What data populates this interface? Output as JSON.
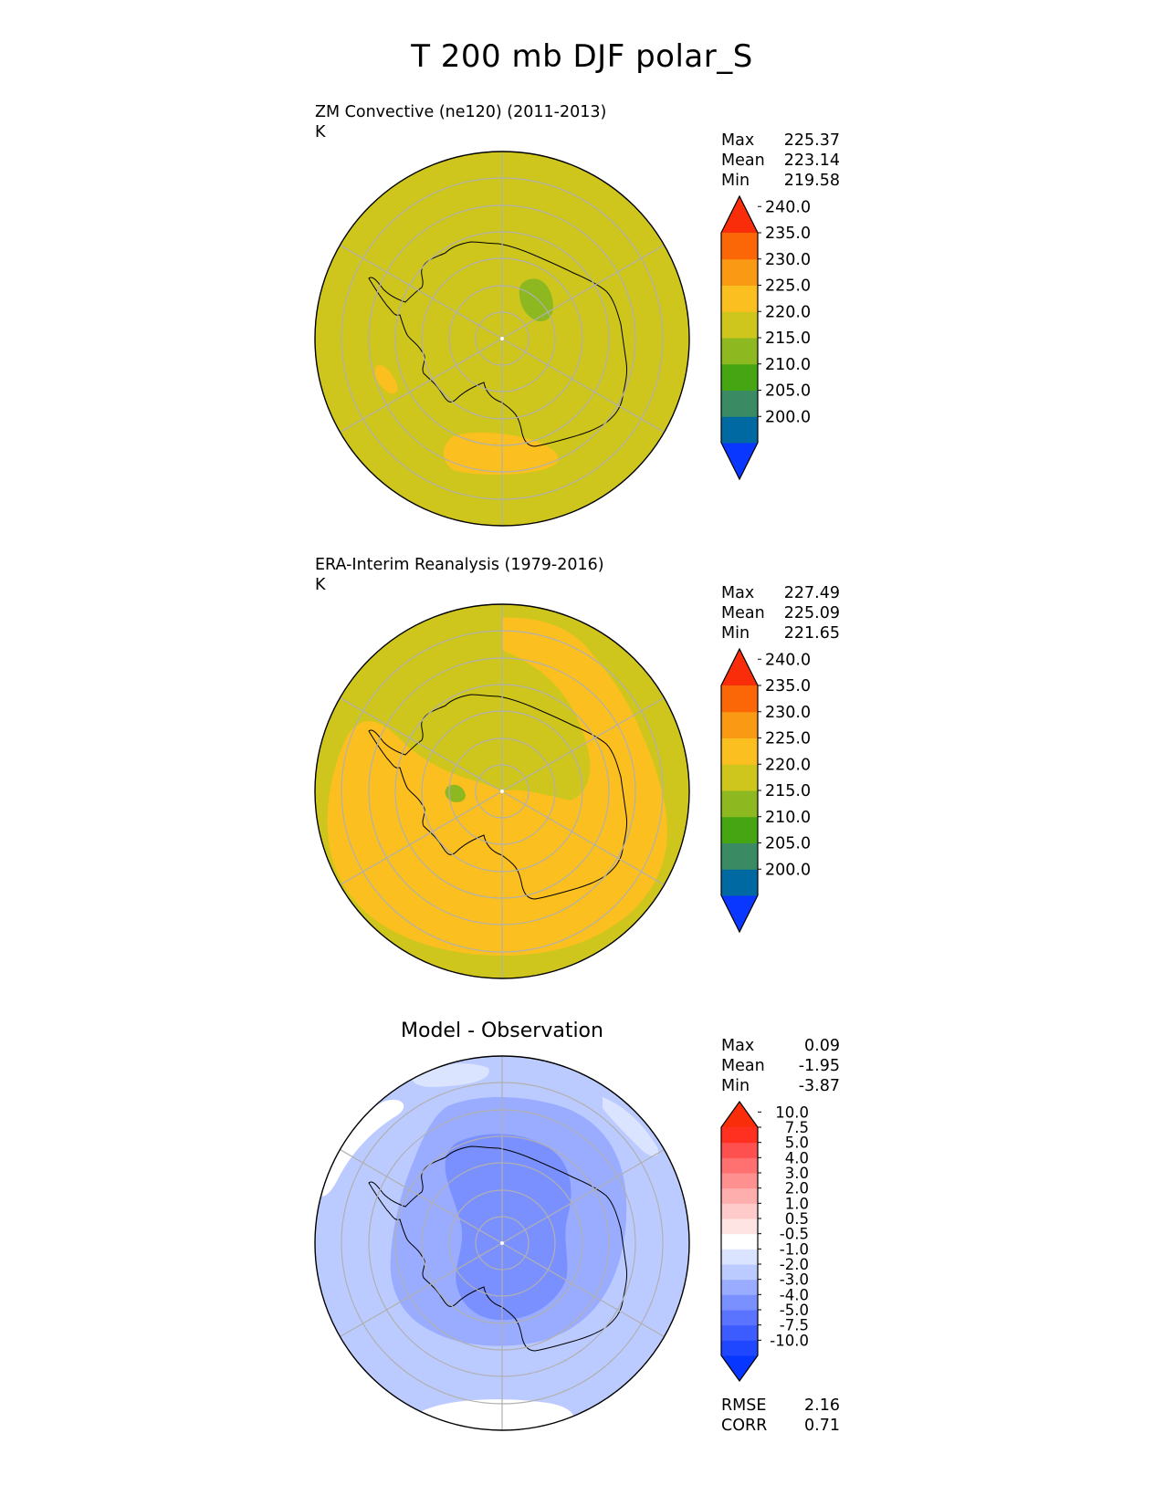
{
  "title": "T 200 mb DJF polar_S",
  "panels": [
    {
      "title": "ZM Convective (ne120) (2011-2013)",
      "units": "K",
      "stats": [
        {
          "label": "Max",
          "value": "225.37"
        },
        {
          "label": "Mean",
          "value": "223.14"
        },
        {
          "label": "Min",
          "value": "219.58"
        }
      ]
    },
    {
      "title": "ERA-Interim Reanalysis (1979-2016)",
      "units": "K",
      "stats": [
        {
          "label": "Max",
          "value": "227.49"
        },
        {
          "label": "Mean",
          "value": "225.09"
        },
        {
          "label": "Min",
          "value": "221.65"
        }
      ]
    },
    {
      "title": "Model - Observation",
      "stats": [
        {
          "label": "Max",
          "value": "0.09"
        },
        {
          "label": "Mean",
          "value": "-1.95"
        },
        {
          "label": "Min",
          "value": "-3.87"
        }
      ],
      "metrics": [
        {
          "label": "RMSE",
          "value": "2.16"
        },
        {
          "label": "CORR",
          "value": "0.71"
        }
      ]
    }
  ],
  "chart_data": [
    {
      "type": "heatmap",
      "projection": "south-polar-stereographic",
      "title": "ZM Convective (ne120) (2011-2013)",
      "units": "K",
      "colorbar": {
        "levels": [
          "200.0",
          "205.0",
          "210.0",
          "215.0",
          "220.0",
          "225.0",
          "230.0",
          "235.0",
          "240.0"
        ],
        "colors": [
          "#0a37ff",
          "#0069a1",
          "#3a8a64",
          "#46a513",
          "#8db81f",
          "#cfc61d",
          "#fbbf1f",
          "#fa9a14",
          "#fb6707",
          "#fa2d0a"
        ],
        "extend": "both"
      },
      "regions": [
        {
          "range": "220.0-225.0",
          "color": "#cfc61d",
          "extent": "background"
        },
        {
          "range": "215.0-220.0",
          "color": "#8db81f",
          "extent": "small patch east of pole"
        },
        {
          "range": "225.0-230.0",
          "color": "#fbbf1f",
          "extent": "patches off the coast"
        }
      ]
    },
    {
      "type": "heatmap",
      "projection": "south-polar-stereographic",
      "title": "ERA-Interim Reanalysis (1979-2016)",
      "units": "K",
      "colorbar": {
        "levels": [
          "200.0",
          "205.0",
          "210.0",
          "215.0",
          "220.0",
          "225.0",
          "230.0",
          "235.0",
          "240.0"
        ],
        "colors": [
          "#0a37ff",
          "#0069a1",
          "#3a8a64",
          "#46a513",
          "#8db81f",
          "#cfc61d",
          "#fbbf1f",
          "#fa9a14",
          "#fb6707",
          "#fa2d0a"
        ],
        "extend": "both"
      },
      "regions": [
        {
          "range": "220.0-225.0",
          "color": "#cfc61d",
          "extent": "outer ring and over the continent"
        },
        {
          "range": "225.0-230.0",
          "color": "#fbbf1f",
          "extent": "broad ring around the continent"
        },
        {
          "range": "215.0-220.0",
          "color": "#8db81f",
          "extent": "tiny patch"
        }
      ]
    },
    {
      "type": "heatmap",
      "projection": "south-polar-stereographic",
      "title": "Model - Observation",
      "colorbar": {
        "levels": [
          "-10.0",
          "-7.5",
          "-5.0",
          "-4.0",
          "-3.0",
          "-2.0",
          "-1.0",
          "-0.5",
          "0.5",
          "1.0",
          "2.0",
          "3.0",
          "4.0",
          "5.0",
          "7.5",
          "10.0"
        ],
        "colors": [
          "#0636ff",
          "#1f47ff",
          "#3c5cff",
          "#5a74ff",
          "#7b90ff",
          "#9aacff",
          "#bccbff",
          "#dbe4ff",
          "#ffffff",
          "#ffe4e4",
          "#ffcaca",
          "#ffaeae",
          "#ff9090",
          "#ff7070",
          "#ff5050",
          "#ff3020",
          "#fa2d0a"
        ],
        "extend": "both"
      },
      "regions": [
        {
          "range": "-1.0--0.5",
          "color": "#bccbff",
          "extent": "outer ocean"
        },
        {
          "range": "-0.5-0.5",
          "color": "#ffffff",
          "extent": "patches near edge"
        },
        {
          "range": "-2.0--1.0",
          "color": "#9aacff",
          "extent": "ring around continent"
        },
        {
          "range": "-3.0--2.0",
          "color": "#7b90ff",
          "extent": "over the continent"
        }
      ]
    }
  ]
}
